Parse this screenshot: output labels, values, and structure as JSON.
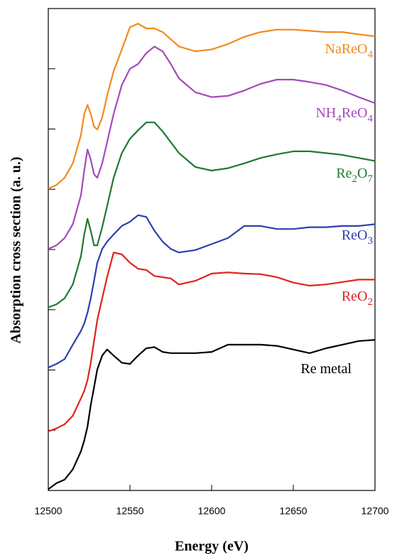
{
  "chart_data": {
    "type": "line",
    "xlabel": "Energy (eV)",
    "ylabel": "Absorption cross section (a. u.)",
    "x": [
      12500,
      12505,
      12510,
      12515,
      12520,
      12522,
      12524,
      12526,
      12528,
      12530,
      12533,
      12536,
      12540,
      12545,
      12550,
      12555,
      12560,
      12565,
      12570,
      12575,
      12580,
      12590,
      12600,
      12610,
      12620,
      12630,
      12640,
      12650,
      12660,
      12670,
      12680,
      12690,
      12700
    ],
    "series": [
      {
        "name": "NaReO4",
        "color": "#f28a1e",
        "values": [
          5.01,
          5.07,
          5.19,
          5.43,
          5.9,
          6.25,
          6.4,
          6.25,
          6.04,
          5.99,
          6.19,
          6.55,
          6.96,
          7.32,
          7.69,
          7.75,
          7.67,
          7.67,
          7.61,
          7.49,
          7.37,
          7.29,
          7.32,
          7.41,
          7.53,
          7.61,
          7.65,
          7.65,
          7.63,
          7.61,
          7.61,
          7.57,
          7.54
        ]
      },
      {
        "name": "NH4ReO4",
        "color": "#a24bbd",
        "values": [
          4.01,
          4.07,
          4.19,
          4.42,
          4.9,
          5.31,
          5.66,
          5.49,
          5.25,
          5.19,
          5.43,
          5.78,
          6.25,
          6.73,
          7.0,
          7.08,
          7.26,
          7.37,
          7.29,
          7.08,
          6.84,
          6.61,
          6.53,
          6.55,
          6.64,
          6.75,
          6.82,
          6.82,
          6.78,
          6.73,
          6.64,
          6.53,
          6.43
        ]
      },
      {
        "name": "Re2O7",
        "color": "#1f7a32",
        "values": [
          3.04,
          3.09,
          3.19,
          3.42,
          3.89,
          4.25,
          4.51,
          4.31,
          4.07,
          4.07,
          4.37,
          4.72,
          5.19,
          5.6,
          5.84,
          5.98,
          6.11,
          6.11,
          5.96,
          5.78,
          5.6,
          5.37,
          5.31,
          5.35,
          5.43,
          5.52,
          5.58,
          5.63,
          5.63,
          5.6,
          5.57,
          5.52,
          5.47
        ]
      },
      {
        "name": "ReO3",
        "color": "#2f3fb0",
        "values": [
          2.04,
          2.1,
          2.18,
          2.42,
          2.65,
          2.77,
          2.95,
          3.19,
          3.48,
          3.78,
          4.01,
          4.13,
          4.25,
          4.39,
          4.46,
          4.57,
          4.54,
          4.31,
          4.13,
          4.01,
          3.95,
          3.99,
          4.09,
          4.19,
          4.39,
          4.39,
          4.34,
          4.34,
          4.37,
          4.37,
          4.39,
          4.39,
          4.42
        ]
      },
      {
        "name": "ReO2",
        "color": "#e0231d",
        "values": [
          0.98,
          1.03,
          1.1,
          1.24,
          1.53,
          1.65,
          1.83,
          2.12,
          2.48,
          2.83,
          3.19,
          3.54,
          3.95,
          3.92,
          3.78,
          3.68,
          3.66,
          3.56,
          3.54,
          3.52,
          3.42,
          3.48,
          3.6,
          3.62,
          3.6,
          3.59,
          3.54,
          3.45,
          3.4,
          3.42,
          3.46,
          3.5,
          3.5
        ]
      },
      {
        "name": "Re metal",
        "color": "#000000",
        "values": [
          0.02,
          0.12,
          0.18,
          0.35,
          0.65,
          0.83,
          1.06,
          1.42,
          1.71,
          2.01,
          2.24,
          2.34,
          2.24,
          2.12,
          2.1,
          2.24,
          2.36,
          2.38,
          2.3,
          2.28,
          2.28,
          2.28,
          2.3,
          2.42,
          2.42,
          2.42,
          2.4,
          2.34,
          2.28,
          2.36,
          2.42,
          2.48,
          2.5
        ]
      }
    ],
    "xlim": [
      12500,
      12700
    ],
    "xticks": [
      12500,
      12550,
      12600,
      12650,
      12700
    ],
    "ylim": [
      0,
      8
    ],
    "yticks": [
      1,
      2,
      3,
      4,
      5,
      6,
      7
    ],
    "ytick_labels": false
  }
}
